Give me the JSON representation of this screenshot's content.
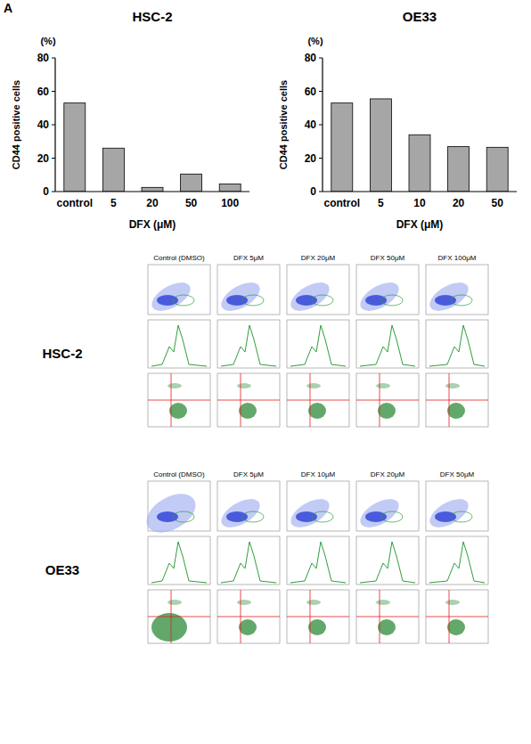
{
  "panel_letter": "A",
  "chart_data": [
    {
      "type": "bar",
      "title": "HSC-2",
      "annotation": "(%)",
      "ylabel": "CD44 positive cells",
      "xlabel": "DFX (μM)",
      "categories": [
        "control",
        "5",
        "20",
        "50",
        "100"
      ],
      "values": [
        53,
        26,
        2.5,
        10.5,
        4.5
      ],
      "color": "#a6a6a6",
      "ylim": [
        0,
        80
      ],
      "yticks": [
        0,
        20,
        40,
        60,
        80
      ],
      "grid": false
    },
    {
      "type": "bar",
      "title": "OE33",
      "annotation": "(%)",
      "ylabel": "CD44 positive cells",
      "xlabel": "DFX (μM)",
      "categories": [
        "control",
        "5",
        "10",
        "20",
        "50"
      ],
      "values": [
        53,
        55.5,
        34,
        27,
        26.5
      ],
      "color": "#a6a6a6",
      "ylim": [
        0,
        80
      ],
      "yticks": [
        0,
        20,
        40,
        60,
        80
      ],
      "grid": false
    }
  ],
  "flow": {
    "rows": [
      {
        "label": "HSC-2",
        "columns": [
          "Control (DMSO)",
          "DFX 5μM",
          "DFX 20μM",
          "DFX 50μM",
          "DFX 100μM"
        ]
      },
      {
        "label": "OE33",
        "columns": [
          "Control (DMSO)",
          "DFX 5μM",
          "DFX 10μM",
          "DFX 20μM",
          "DFX 50μM"
        ]
      }
    ]
  }
}
